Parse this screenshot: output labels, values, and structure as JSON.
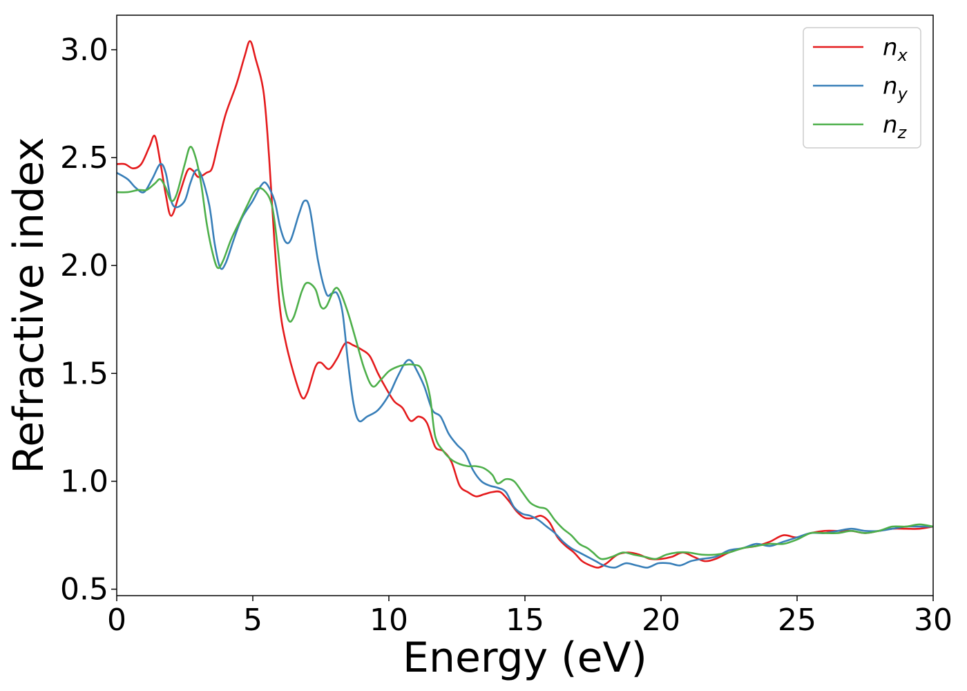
{
  "chart_data": {
    "type": "line",
    "title": "",
    "xlabel": "Energy (eV)",
    "ylabel": "Refractive index",
    "xlim": [
      0,
      30
    ],
    "ylim": [
      0.47,
      3.16
    ],
    "xticks": [
      0,
      5,
      10,
      15,
      20,
      25,
      30
    ],
    "yticks": [
      0.5,
      1.0,
      1.5,
      2.0,
      2.5,
      3.0
    ],
    "xtick_labels": [
      "0",
      "5",
      "10",
      "15",
      "20",
      "25",
      "30"
    ],
    "ytick_labels": [
      "0.5",
      "1.0",
      "1.5",
      "2.0",
      "2.5",
      "3.0"
    ],
    "grid": false,
    "legend_position": "top-right",
    "series": [
      {
        "name": "n_x",
        "label_main": "n",
        "label_sub": "x",
        "color": "#e41a1c",
        "points": [
          [
            0,
            2.47
          ],
          [
            0.3,
            2.47
          ],
          [
            0.6,
            2.45
          ],
          [
            0.9,
            2.47
          ],
          [
            1.2,
            2.55
          ],
          [
            1.4,
            2.6
          ],
          [
            1.6,
            2.48
          ],
          [
            1.8,
            2.33
          ],
          [
            2.0,
            2.23
          ],
          [
            2.3,
            2.33
          ],
          [
            2.6,
            2.44
          ],
          [
            2.8,
            2.44
          ],
          [
            3.0,
            2.41
          ],
          [
            3.3,
            2.43
          ],
          [
            3.5,
            2.45
          ],
          [
            3.7,
            2.55
          ],
          [
            4.0,
            2.7
          ],
          [
            4.4,
            2.84
          ],
          [
            4.7,
            2.97
          ],
          [
            4.9,
            3.04
          ],
          [
            5.1,
            2.96
          ],
          [
            5.4,
            2.8
          ],
          [
            5.6,
            2.5
          ],
          [
            5.8,
            2.1
          ],
          [
            6.0,
            1.8
          ],
          [
            6.2,
            1.65
          ],
          [
            6.5,
            1.5
          ],
          [
            6.8,
            1.39
          ],
          [
            7.0,
            1.41
          ],
          [
            7.3,
            1.53
          ],
          [
            7.5,
            1.55
          ],
          [
            7.8,
            1.52
          ],
          [
            8.1,
            1.57
          ],
          [
            8.4,
            1.64
          ],
          [
            8.7,
            1.63
          ],
          [
            9.0,
            1.61
          ],
          [
            9.3,
            1.58
          ],
          [
            9.6,
            1.5
          ],
          [
            9.9,
            1.43
          ],
          [
            10.2,
            1.37
          ],
          [
            10.5,
            1.34
          ],
          [
            10.8,
            1.28
          ],
          [
            11.1,
            1.3
          ],
          [
            11.4,
            1.27
          ],
          [
            11.7,
            1.16
          ],
          [
            12.0,
            1.14
          ],
          [
            12.3,
            1.09
          ],
          [
            12.6,
            0.98
          ],
          [
            12.9,
            0.95
          ],
          [
            13.2,
            0.93
          ],
          [
            13.5,
            0.94
          ],
          [
            13.8,
            0.95
          ],
          [
            14.1,
            0.95
          ],
          [
            14.4,
            0.91
          ],
          [
            14.7,
            0.86
          ],
          [
            15.0,
            0.83
          ],
          [
            15.3,
            0.83
          ],
          [
            15.6,
            0.84
          ],
          [
            15.9,
            0.81
          ],
          [
            16.2,
            0.74
          ],
          [
            16.5,
            0.7
          ],
          [
            16.8,
            0.67
          ],
          [
            17.1,
            0.63
          ],
          [
            17.4,
            0.61
          ],
          [
            17.7,
            0.6
          ],
          [
            18.0,
            0.62
          ],
          [
            18.4,
            0.66
          ],
          [
            18.8,
            0.67
          ],
          [
            19.2,
            0.66
          ],
          [
            19.6,
            0.64
          ],
          [
            20.0,
            0.64
          ],
          [
            20.4,
            0.65
          ],
          [
            20.8,
            0.67
          ],
          [
            21.2,
            0.65
          ],
          [
            21.6,
            0.63
          ],
          [
            22.0,
            0.64
          ],
          [
            22.5,
            0.67
          ],
          [
            23.0,
            0.69
          ],
          [
            23.5,
            0.7
          ],
          [
            24.0,
            0.72
          ],
          [
            24.5,
            0.75
          ],
          [
            25.0,
            0.74
          ],
          [
            25.5,
            0.76
          ],
          [
            26.0,
            0.77
          ],
          [
            26.5,
            0.77
          ],
          [
            27.0,
            0.77
          ],
          [
            27.5,
            0.76
          ],
          [
            28.0,
            0.77
          ],
          [
            28.5,
            0.78
          ],
          [
            29.0,
            0.78
          ],
          [
            29.5,
            0.78
          ],
          [
            30.0,
            0.79
          ]
        ]
      },
      {
        "name": "n_y",
        "label_main": "n",
        "label_sub": "y",
        "color": "#377eb8",
        "points": [
          [
            0,
            2.43
          ],
          [
            0.4,
            2.4
          ],
          [
            0.7,
            2.36
          ],
          [
            1.0,
            2.34
          ],
          [
            1.3,
            2.4
          ],
          [
            1.6,
            2.47
          ],
          [
            1.8,
            2.43
          ],
          [
            2.0,
            2.3
          ],
          [
            2.2,
            2.27
          ],
          [
            2.5,
            2.3
          ],
          [
            2.7,
            2.38
          ],
          [
            2.9,
            2.44
          ],
          [
            3.1,
            2.42
          ],
          [
            3.4,
            2.28
          ],
          [
            3.6,
            2.1
          ],
          [
            3.8,
            1.99
          ],
          [
            4.0,
            2.01
          ],
          [
            4.3,
            2.12
          ],
          [
            4.6,
            2.22
          ],
          [
            5.0,
            2.3
          ],
          [
            5.3,
            2.37
          ],
          [
            5.5,
            2.38
          ],
          [
            5.8,
            2.3
          ],
          [
            6.0,
            2.18
          ],
          [
            6.2,
            2.11
          ],
          [
            6.4,
            2.12
          ],
          [
            6.7,
            2.24
          ],
          [
            6.9,
            2.3
          ],
          [
            7.1,
            2.26
          ],
          [
            7.4,
            2.02
          ],
          [
            7.7,
            1.87
          ],
          [
            7.9,
            1.87
          ],
          [
            8.1,
            1.87
          ],
          [
            8.3,
            1.78
          ],
          [
            8.5,
            1.55
          ],
          [
            8.7,
            1.36
          ],
          [
            8.9,
            1.28
          ],
          [
            9.2,
            1.3
          ],
          [
            9.6,
            1.33
          ],
          [
            10.0,
            1.4
          ],
          [
            10.3,
            1.48
          ],
          [
            10.6,
            1.55
          ],
          [
            10.8,
            1.56
          ],
          [
            11.0,
            1.52
          ],
          [
            11.3,
            1.44
          ],
          [
            11.6,
            1.33
          ],
          [
            11.9,
            1.3
          ],
          [
            12.2,
            1.22
          ],
          [
            12.5,
            1.17
          ],
          [
            12.8,
            1.13
          ],
          [
            13.1,
            1.05
          ],
          [
            13.4,
            1.0
          ],
          [
            13.7,
            0.98
          ],
          [
            14.0,
            0.97
          ],
          [
            14.3,
            0.95
          ],
          [
            14.6,
            0.88
          ],
          [
            14.9,
            0.85
          ],
          [
            15.2,
            0.84
          ],
          [
            15.5,
            0.82
          ],
          [
            15.8,
            0.79
          ],
          [
            16.1,
            0.76
          ],
          [
            16.4,
            0.72
          ],
          [
            16.7,
            0.69
          ],
          [
            17.0,
            0.67
          ],
          [
            17.3,
            0.65
          ],
          [
            17.6,
            0.63
          ],
          [
            17.9,
            0.61
          ],
          [
            18.3,
            0.6
          ],
          [
            18.7,
            0.62
          ],
          [
            19.1,
            0.61
          ],
          [
            19.5,
            0.6
          ],
          [
            19.9,
            0.62
          ],
          [
            20.3,
            0.62
          ],
          [
            20.7,
            0.61
          ],
          [
            21.1,
            0.63
          ],
          [
            21.5,
            0.64
          ],
          [
            22.0,
            0.65
          ],
          [
            22.5,
            0.68
          ],
          [
            23.0,
            0.69
          ],
          [
            23.5,
            0.71
          ],
          [
            24.0,
            0.7
          ],
          [
            24.5,
            0.72
          ],
          [
            25.0,
            0.74
          ],
          [
            25.5,
            0.76
          ],
          [
            26.0,
            0.76
          ],
          [
            26.5,
            0.77
          ],
          [
            27.0,
            0.78
          ],
          [
            27.5,
            0.77
          ],
          [
            28.0,
            0.77
          ],
          [
            28.5,
            0.78
          ],
          [
            29.0,
            0.79
          ],
          [
            29.5,
            0.79
          ],
          [
            30.0,
            0.79
          ]
        ]
      },
      {
        "name": "n_z",
        "label_main": "n",
        "label_sub": "z",
        "color": "#4daf4a",
        "points": [
          [
            0,
            2.34
          ],
          [
            0.4,
            2.34
          ],
          [
            0.8,
            2.35
          ],
          [
            1.1,
            2.35
          ],
          [
            1.4,
            2.38
          ],
          [
            1.6,
            2.4
          ],
          [
            1.8,
            2.36
          ],
          [
            2.0,
            2.3
          ],
          [
            2.2,
            2.33
          ],
          [
            2.5,
            2.47
          ],
          [
            2.7,
            2.55
          ],
          [
            2.9,
            2.5
          ],
          [
            3.1,
            2.38
          ],
          [
            3.3,
            2.2
          ],
          [
            3.5,
            2.07
          ],
          [
            3.7,
            1.99
          ],
          [
            3.9,
            2.02
          ],
          [
            4.2,
            2.12
          ],
          [
            4.5,
            2.2
          ],
          [
            4.8,
            2.28
          ],
          [
            5.1,
            2.35
          ],
          [
            5.4,
            2.35
          ],
          [
            5.7,
            2.28
          ],
          [
            5.9,
            2.1
          ],
          [
            6.1,
            1.87
          ],
          [
            6.3,
            1.75
          ],
          [
            6.5,
            1.76
          ],
          [
            6.8,
            1.88
          ],
          [
            7.0,
            1.92
          ],
          [
            7.3,
            1.89
          ],
          [
            7.5,
            1.81
          ],
          [
            7.7,
            1.81
          ],
          [
            8.0,
            1.89
          ],
          [
            8.2,
            1.88
          ],
          [
            8.5,
            1.78
          ],
          [
            8.8,
            1.65
          ],
          [
            9.1,
            1.52
          ],
          [
            9.4,
            1.44
          ],
          [
            9.7,
            1.47
          ],
          [
            10.0,
            1.51
          ],
          [
            10.3,
            1.53
          ],
          [
            10.6,
            1.54
          ],
          [
            10.9,
            1.54
          ],
          [
            11.2,
            1.52
          ],
          [
            11.5,
            1.4
          ],
          [
            11.7,
            1.21
          ],
          [
            12.0,
            1.14
          ],
          [
            12.3,
            1.1
          ],
          [
            12.6,
            1.08
          ],
          [
            12.9,
            1.07
          ],
          [
            13.2,
            1.07
          ],
          [
            13.5,
            1.06
          ],
          [
            13.8,
            1.03
          ],
          [
            14.0,
            0.99
          ],
          [
            14.3,
            1.01
          ],
          [
            14.6,
            1.0
          ],
          [
            14.9,
            0.95
          ],
          [
            15.2,
            0.9
          ],
          [
            15.5,
            0.88
          ],
          [
            15.8,
            0.87
          ],
          [
            16.1,
            0.82
          ],
          [
            16.4,
            0.78
          ],
          [
            16.7,
            0.75
          ],
          [
            17.0,
            0.71
          ],
          [
            17.3,
            0.69
          ],
          [
            17.5,
            0.67
          ],
          [
            17.8,
            0.64
          ],
          [
            18.2,
            0.65
          ],
          [
            18.6,
            0.67
          ],
          [
            19.0,
            0.66
          ],
          [
            19.4,
            0.65
          ],
          [
            19.8,
            0.64
          ],
          [
            20.2,
            0.66
          ],
          [
            20.6,
            0.67
          ],
          [
            21.0,
            0.67
          ],
          [
            21.5,
            0.66
          ],
          [
            22.0,
            0.66
          ],
          [
            22.5,
            0.67
          ],
          [
            23.0,
            0.69
          ],
          [
            23.5,
            0.7
          ],
          [
            24.0,
            0.71
          ],
          [
            24.5,
            0.71
          ],
          [
            25.0,
            0.73
          ],
          [
            25.5,
            0.76
          ],
          [
            26.0,
            0.76
          ],
          [
            26.5,
            0.76
          ],
          [
            27.0,
            0.77
          ],
          [
            27.5,
            0.76
          ],
          [
            28.0,
            0.77
          ],
          [
            28.5,
            0.79
          ],
          [
            29.0,
            0.79
          ],
          [
            29.5,
            0.8
          ],
          [
            30.0,
            0.79
          ]
        ]
      }
    ]
  }
}
